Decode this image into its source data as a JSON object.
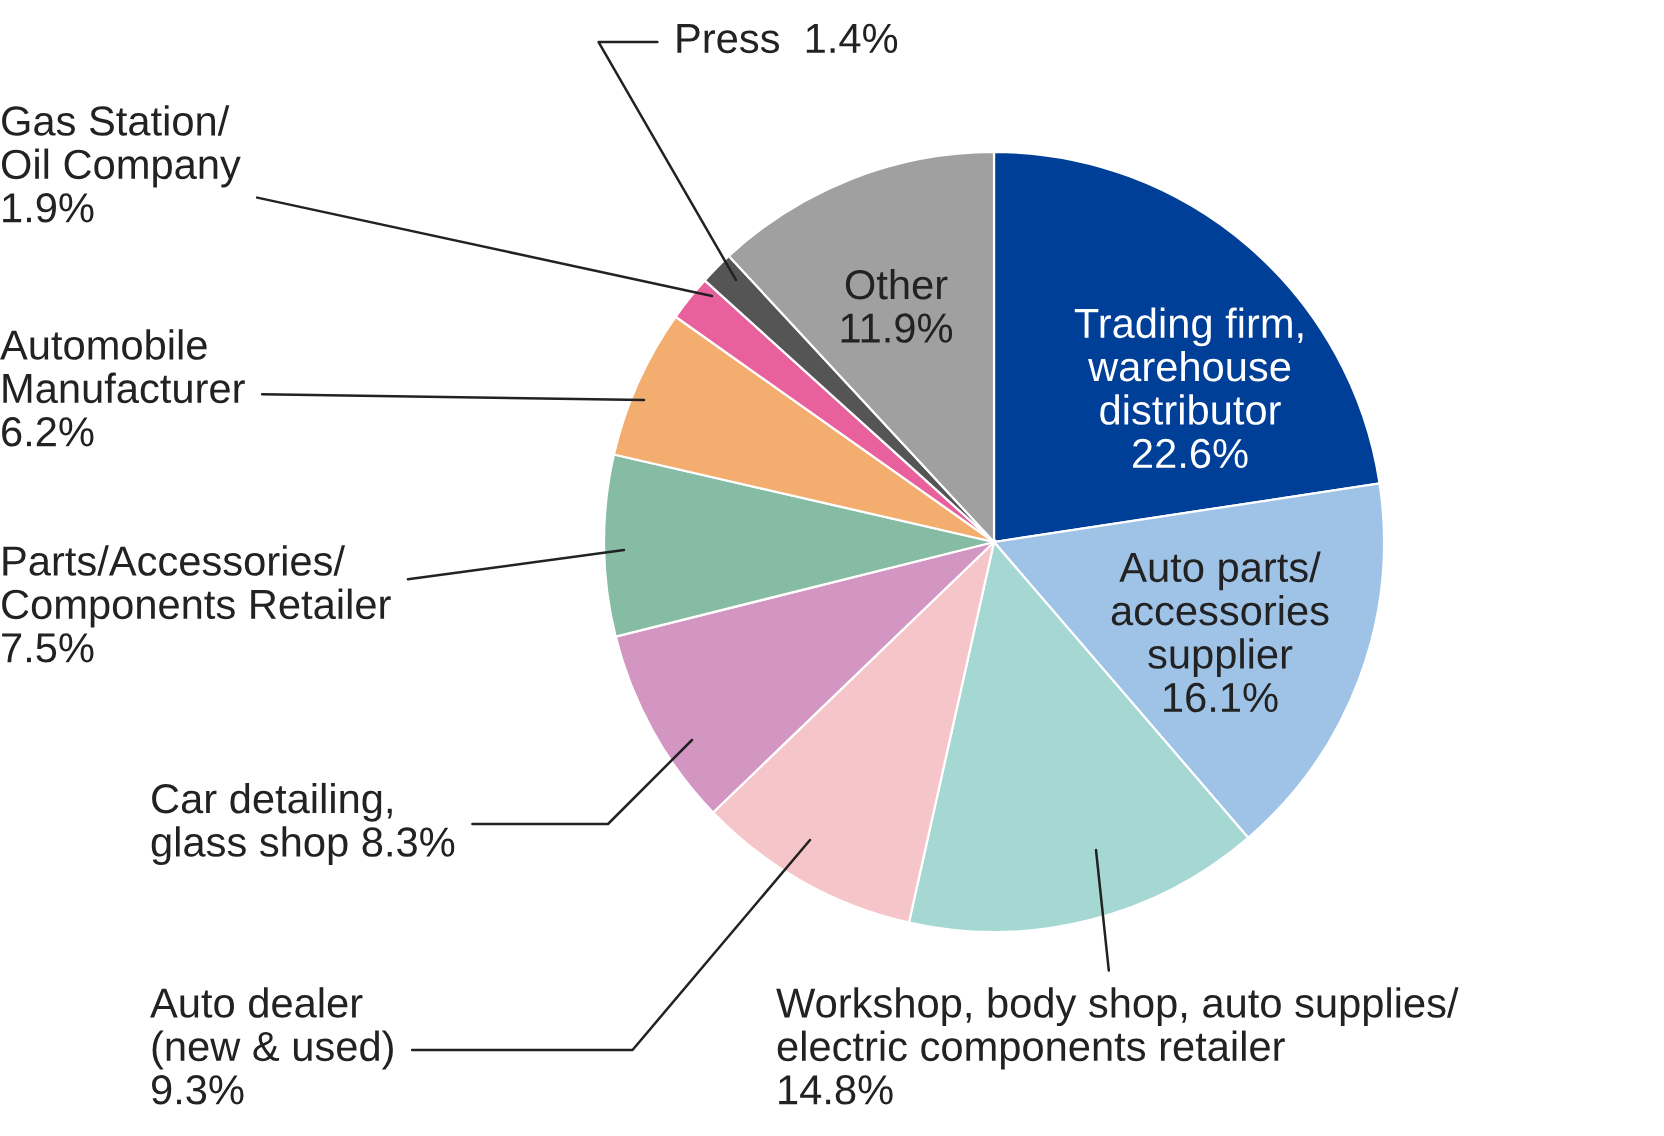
{
  "chart_data": {
    "type": "pie",
    "categories": [
      "Trading firm,\nwarehouse\ndistributor",
      "Auto parts/\naccessories\nsupplier",
      "Workshop, body shop, auto supplies/\nelectric components retailer",
      "Auto dealer\n(new & used)",
      "Car detailing,\nglass shop",
      "Parts/Accessories/\nComponents Retailer",
      "Automobile\nManufacturer",
      "Gas Station/\nOil Company",
      "Press",
      "Other"
    ],
    "values": [
      22.6,
      16.1,
      14.8,
      9.3,
      8.3,
      7.5,
      6.2,
      1.9,
      1.4,
      11.9
    ],
    "value_labels": [
      "22.6%",
      "16.1%",
      "14.8%",
      "9.3%",
      "8.3%",
      "7.5%",
      "6.2%",
      "1.9%",
      "1.4%",
      "11.9%"
    ],
    "colors": [
      "#003f98",
      "#9fc2e7",
      "#a5d8d3",
      "#f6c5c9",
      "#d395c1",
      "#86bba4",
      "#f3ae6f",
      "#e8619d",
      "#555555",
      "#a0a0a0"
    ]
  }
}
